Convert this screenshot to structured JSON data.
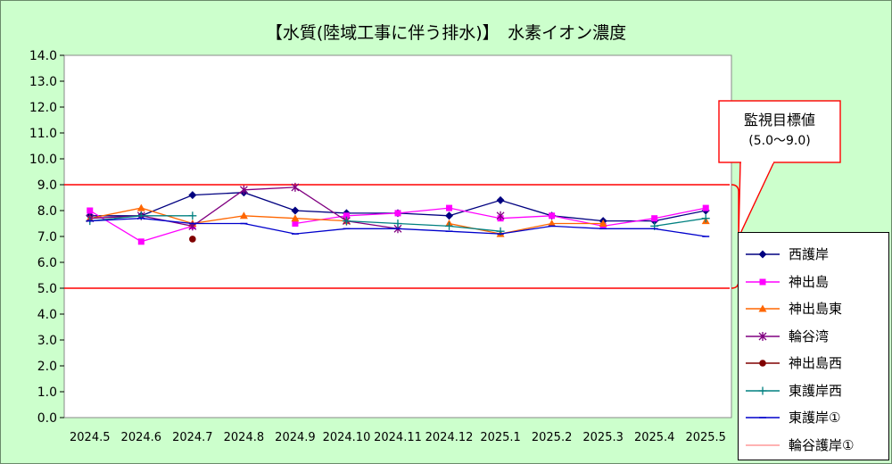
{
  "chart_data": {
    "type": "line",
    "title": "【水質(陸域工事に伴う排水)】　水素イオン濃度",
    "categories": [
      "2024.5",
      "2024.6",
      "2024.7",
      "2024.8",
      "2024.9",
      "2024.10",
      "2024.11",
      "2024.12",
      "2025.1",
      "2025.2",
      "2025.3",
      "2025.4",
      "2025.5"
    ],
    "ylim": [
      0,
      14
    ],
    "yticks": [
      "0.0",
      "1.0",
      "2.0",
      "3.0",
      "4.0",
      "5.0",
      "6.0",
      "7.0",
      "8.0",
      "9.0",
      "10.0",
      "11.0",
      "12.0",
      "13.0",
      "14.0"
    ],
    "grid": false,
    "legend_position": "right",
    "standard": {
      "lower": 5.0,
      "upper": 9.0,
      "color": "#ff0000",
      "callout_title": "監視目標値",
      "callout_range": "(5.0～9.0)"
    },
    "series": [
      {
        "name": "西護岸",
        "color": "#000080",
        "marker": "diamond",
        "values": [
          7.8,
          7.8,
          8.6,
          8.7,
          8.0,
          7.9,
          7.9,
          7.8,
          8.4,
          7.8,
          7.6,
          7.6,
          8.0
        ]
      },
      {
        "name": "神出島",
        "color": "#ff00ff",
        "marker": "square",
        "values": [
          8.0,
          6.8,
          7.4,
          null,
          7.5,
          7.8,
          7.9,
          8.1,
          7.7,
          7.8,
          7.4,
          7.7,
          8.1
        ]
      },
      {
        "name": "神出島東",
        "color": "#ff6600",
        "marker": "triangle",
        "values": [
          7.7,
          8.1,
          7.5,
          7.8,
          7.7,
          7.6,
          null,
          7.5,
          7.1,
          7.5,
          7.5,
          null,
          7.6
        ]
      },
      {
        "name": "輪谷湾",
        "color": "#800080",
        "marker": "star",
        "values": [
          7.7,
          7.8,
          7.4,
          8.8,
          8.9,
          7.6,
          7.3,
          null,
          7.8,
          null,
          null,
          null,
          null
        ]
      },
      {
        "name": "神出島西",
        "color": "#800000",
        "marker": "circle",
        "values": [
          null,
          null,
          6.9,
          null,
          null,
          null,
          null,
          null,
          null,
          null,
          null,
          null,
          null
        ]
      },
      {
        "name": "東護岸西",
        "color": "#008080",
        "marker": "plus",
        "values": [
          7.6,
          7.8,
          7.8,
          null,
          null,
          7.6,
          7.5,
          7.4,
          7.2,
          null,
          null,
          7.4,
          7.7
        ]
      },
      {
        "name": "東護岸①",
        "color": "#0000cc",
        "marker": "dash",
        "values": [
          7.6,
          7.7,
          7.5,
          7.5,
          7.1,
          7.3,
          7.3,
          7.2,
          7.1,
          7.4,
          7.3,
          7.3,
          7.0
        ]
      },
      {
        "name": "輪谷護岸①",
        "color": "#ff9999",
        "marker": "none",
        "values": [
          null,
          null,
          null,
          null,
          null,
          null,
          null,
          null,
          null,
          null,
          null,
          null,
          null
        ]
      }
    ]
  }
}
